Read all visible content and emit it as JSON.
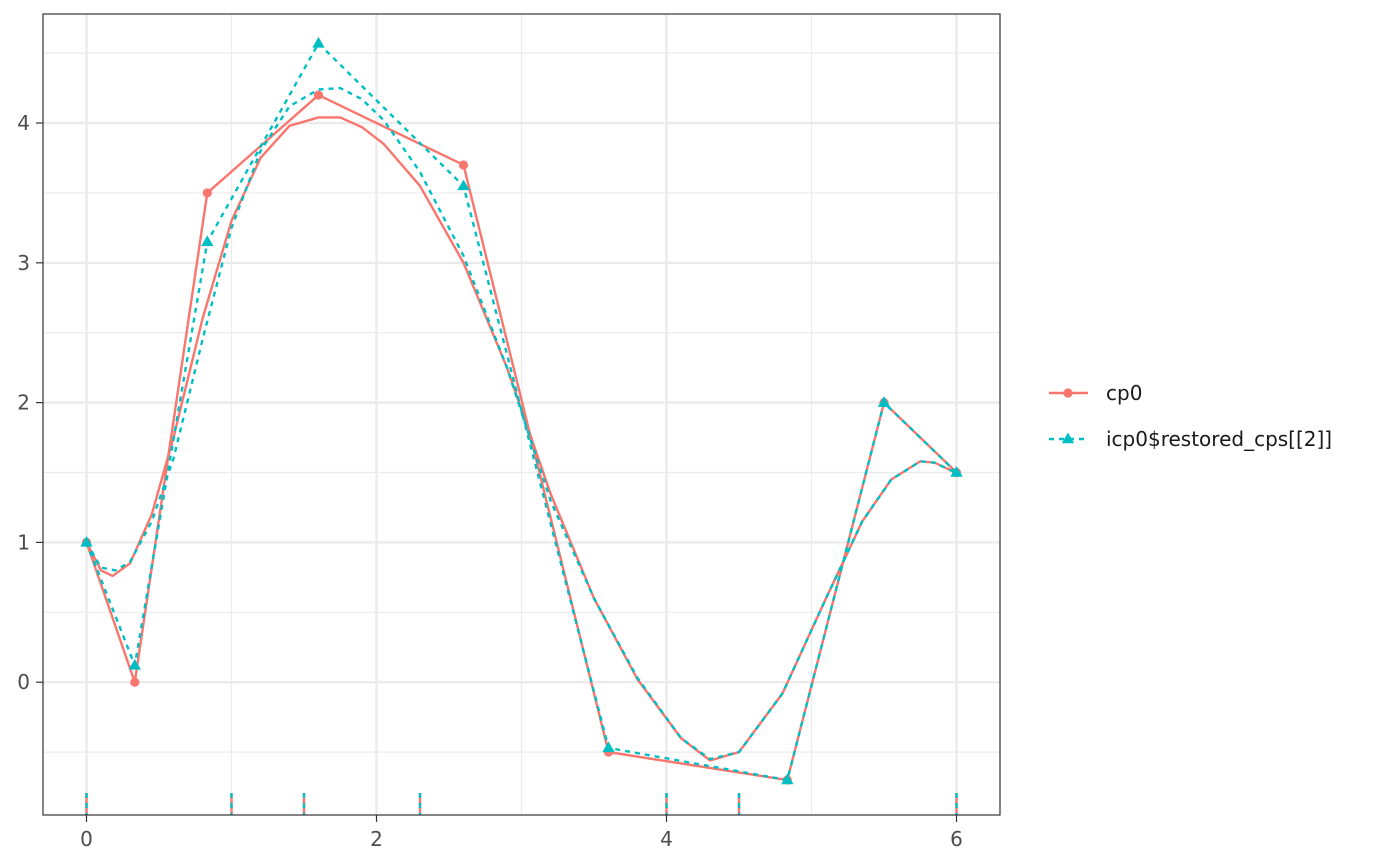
{
  "chart_data": {
    "type": "line",
    "title": "",
    "xlabel": "",
    "ylabel": "",
    "xlim": [
      -0.3,
      6.3
    ],
    "ylim": [
      -0.95,
      4.78
    ],
    "grid": true,
    "legend_position": "right",
    "x_ticks": [
      0,
      2,
      4,
      6
    ],
    "x_tick_labels": [
      "0",
      "2",
      "4",
      "6"
    ],
    "y_ticks": [
      0,
      1,
      2,
      3,
      4
    ],
    "y_tick_labels": [
      "0",
      "1",
      "2",
      "3",
      "4"
    ],
    "knots": [
      0,
      1,
      1.5,
      2.3,
      4,
      4.5,
      6
    ],
    "series": [
      {
        "name": "cp0",
        "color": "#F8766D",
        "line_style": "solid",
        "marker": "circle",
        "control_points": {
          "x": [
            0,
            0.333,
            0.833,
            1.6,
            2.6,
            3.6,
            4.833,
            5.5,
            6
          ],
          "y": [
            1.0,
            0.0,
            3.5,
            4.2,
            3.7,
            -0.5,
            -0.7,
            2.0,
            1.5
          ]
        },
        "curve": {
          "x": [
            0,
            0.1,
            0.18,
            0.3,
            0.45,
            0.6,
            0.8,
            1.0,
            1.2,
            1.4,
            1.6,
            1.75,
            1.9,
            2.05,
            2.3,
            2.6,
            2.9,
            3.2,
            3.5,
            3.8,
            4.1,
            4.3,
            4.5,
            4.8,
            5.1,
            5.35,
            5.55,
            5.75,
            5.85,
            5.95,
            6.0
          ],
          "y": [
            1.0,
            0.8,
            0.76,
            0.85,
            1.2,
            1.75,
            2.6,
            3.3,
            3.75,
            3.98,
            4.04,
            4.04,
            3.97,
            3.85,
            3.55,
            3.0,
            2.25,
            1.35,
            0.6,
            0.02,
            -0.4,
            -0.56,
            -0.5,
            -0.08,
            0.6,
            1.15,
            1.45,
            1.58,
            1.57,
            1.52,
            1.5
          ]
        }
      },
      {
        "name": "icp0$restored_cps[[2]]",
        "color": "#00BFC4",
        "line_style": "dotted",
        "marker": "triangle",
        "control_points": {
          "x": [
            0,
            0.333,
            0.833,
            1.6,
            2.6,
            3.6,
            4.833,
            5.5,
            6
          ],
          "y": [
            1.0,
            0.12,
            3.15,
            4.57,
            3.55,
            -0.47,
            -0.7,
            2.0,
            1.5
          ]
        },
        "curve": {
          "x": [
            0,
            0.1,
            0.2,
            0.3,
            0.45,
            0.6,
            0.8,
            1.0,
            1.2,
            1.4,
            1.6,
            1.75,
            1.9,
            2.05,
            2.3,
            2.6,
            2.9,
            3.2,
            3.5,
            3.8,
            4.1,
            4.3,
            4.5,
            4.8,
            5.1,
            5.35,
            5.55,
            5.75,
            5.85,
            5.95,
            6.0
          ],
          "y": [
            1.0,
            0.82,
            0.8,
            0.86,
            1.15,
            1.6,
            2.45,
            3.25,
            3.8,
            4.12,
            4.24,
            4.25,
            4.17,
            4.02,
            3.65,
            3.05,
            2.25,
            1.3,
            0.6,
            0.03,
            -0.4,
            -0.55,
            -0.5,
            -0.08,
            0.6,
            1.15,
            1.45,
            1.58,
            1.57,
            1.52,
            1.5
          ]
        }
      }
    ]
  }
}
